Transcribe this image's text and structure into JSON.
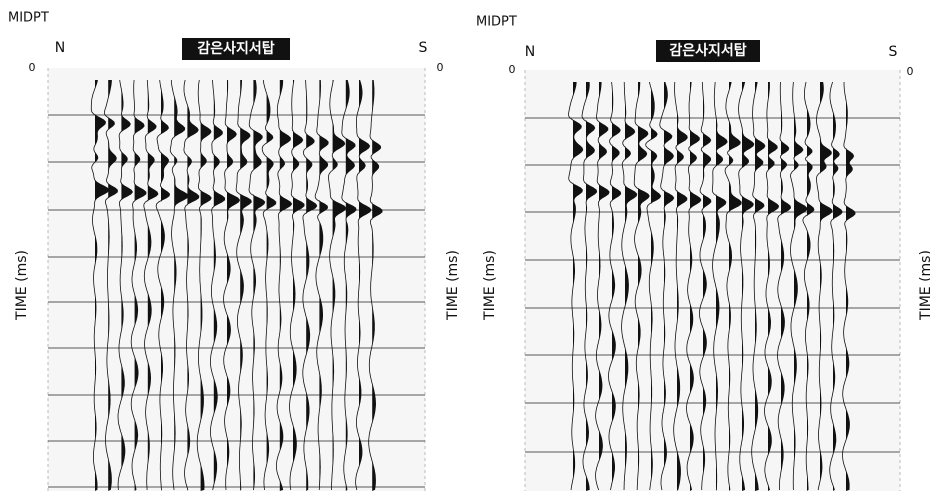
{
  "panels": [
    {
      "midpt": "MIDPT",
      "north": "N",
      "south": "S",
      "site": "감은사지서탑",
      "time_label": "TIME (ms)",
      "zero_left": "0",
      "zero_right": "0"
    },
    {
      "midpt": "MIDPT",
      "north": "N",
      "south": "S",
      "site": "감은사지서탑",
      "time_label": "TIME (ms)",
      "zero_left": "0",
      "zero_right": "0"
    }
  ]
}
